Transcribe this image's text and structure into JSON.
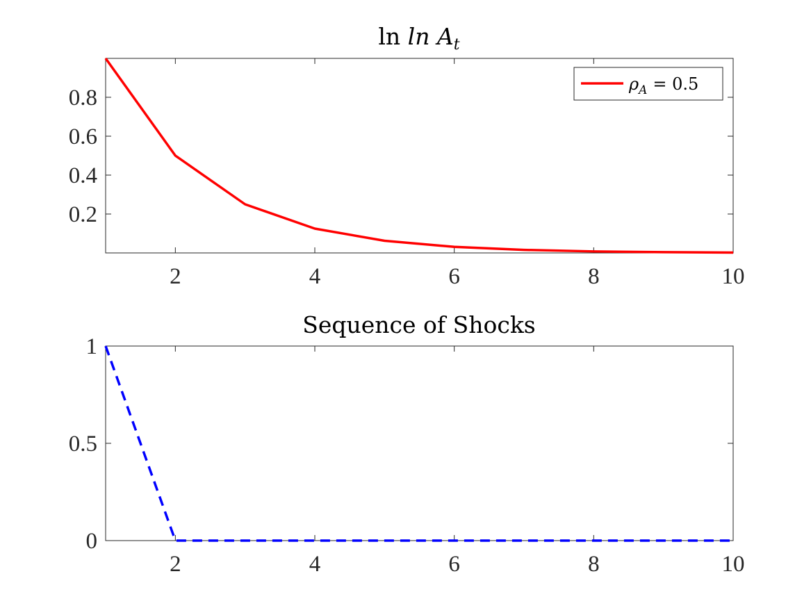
{
  "chart_data": [
    {
      "type": "line",
      "title": "ln A_t",
      "title_parts": {
        "base": "ln A",
        "subscript": "t"
      },
      "xlabel": "",
      "ylabel": "",
      "xlim": [
        1,
        10
      ],
      "ylim": [
        0,
        1
      ],
      "xticks": [
        2,
        4,
        6,
        8,
        10
      ],
      "xtick_labels": [
        "2",
        "4",
        "6",
        "8",
        "10"
      ],
      "yticks": [
        0.2,
        0.4,
        0.6,
        0.8
      ],
      "ytick_labels": [
        "0.2",
        "0.4",
        "0.6",
        "0.8"
      ],
      "grid": false,
      "legend": {
        "placement": "top-right",
        "entries": [
          {
            "symbol": "ρ",
            "subscript": "A",
            "text": "= 0.5"
          }
        ]
      },
      "series": [
        {
          "name": "ρ_A = 0.5",
          "color": "#ff0000",
          "style": "solid",
          "x": [
            1,
            2,
            3,
            4,
            5,
            6,
            7,
            8,
            9,
            10
          ],
          "y": [
            1,
            0.5,
            0.25,
            0.125,
            0.0625,
            0.03125,
            0.015625,
            0.0078125,
            0.00390625,
            0.001953125
          ]
        }
      ]
    },
    {
      "type": "line",
      "title": "Sequence of Shocks",
      "xlabel": "",
      "ylabel": "",
      "xlim": [
        1,
        10
      ],
      "ylim": [
        0,
        1
      ],
      "xticks": [
        2,
        4,
        6,
        8,
        10
      ],
      "xtick_labels": [
        "2",
        "4",
        "6",
        "8",
        "10"
      ],
      "yticks": [
        0,
        0.5,
        1
      ],
      "ytick_labels": [
        "0",
        "0.5",
        "1"
      ],
      "grid": false,
      "series": [
        {
          "color": "#0000ff",
          "style": "dashed",
          "x": [
            1,
            2,
            3,
            4,
            5,
            6,
            7,
            8,
            9,
            10
          ],
          "y": [
            1,
            0,
            0,
            0,
            0,
            0,
            0,
            0,
            0,
            0
          ]
        }
      ]
    }
  ]
}
